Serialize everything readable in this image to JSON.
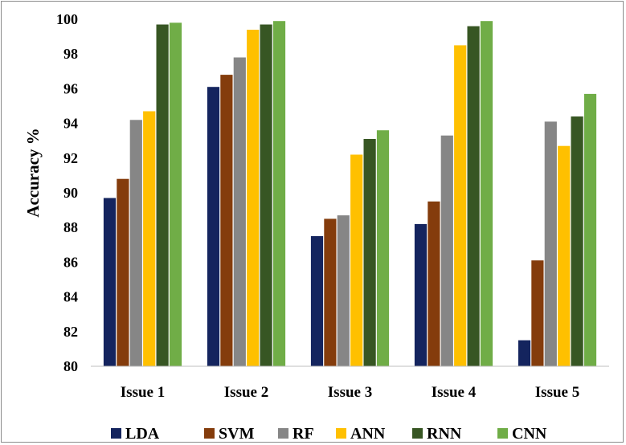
{
  "chart_data": {
    "type": "bar",
    "title": "",
    "xlabel": "",
    "ylabel": "Accuracy %",
    "ylim": [
      80,
      100
    ],
    "yticks": [
      80,
      82,
      84,
      86,
      88,
      90,
      92,
      94,
      96,
      98,
      100
    ],
    "categories": [
      "Issue 1",
      "Issue 2",
      "Issue 3",
      "Issue 4",
      "Issue 5"
    ],
    "series": [
      {
        "name": "LDA",
        "color": "#14245e",
        "values": [
          89.7,
          96.1,
          87.5,
          88.2,
          81.5
        ]
      },
      {
        "name": "SVM",
        "color": "#843c0c",
        "values": [
          90.8,
          96.8,
          88.5,
          89.5,
          86.1
        ]
      },
      {
        "name": "RF",
        "color": "#868686",
        "values": [
          94.2,
          97.8,
          88.7,
          93.3,
          94.1
        ]
      },
      {
        "name": "ANN",
        "color": "#ffc000",
        "values": [
          94.7,
          99.4,
          92.2,
          98.5,
          92.7
        ]
      },
      {
        "name": "RNN",
        "color": "#375623",
        "values": [
          99.7,
          99.7,
          93.1,
          99.6,
          94.4
        ]
      },
      {
        "name": "CNN",
        "color": "#70ad47",
        "values": [
          99.8,
          99.9,
          93.6,
          99.9,
          95.7
        ]
      }
    ],
    "grid": false,
    "legend_position": "bottom"
  }
}
